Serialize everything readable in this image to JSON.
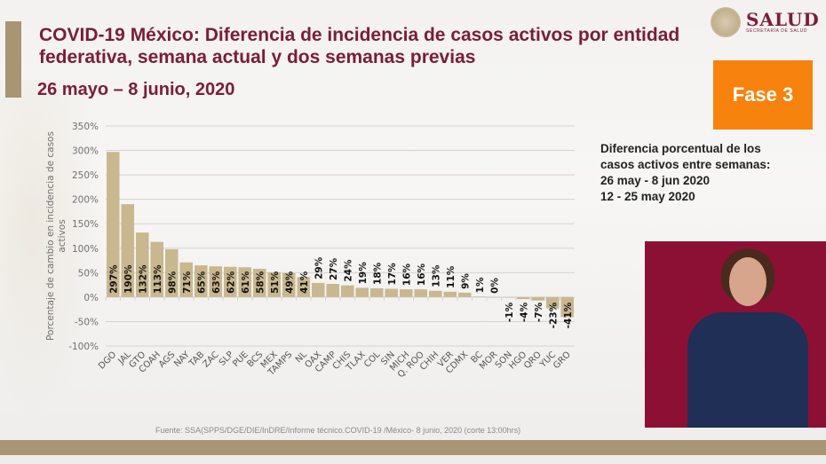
{
  "header": {
    "title": "COVID-19 México: Diferencia de incidencia de casos activos por entidad federativa, semana actual y dos semanas previas",
    "date_range": "26 mayo – 8 junio, 2020",
    "logo_main": "SALUD",
    "logo_sub": "SECRETARÍA DE SALUD",
    "phase_badge": "Fase 3"
  },
  "legend_note": {
    "line1": "Diferencia porcentual de los",
    "line2": "casos activos entre semanas:",
    "line3": "26 may - 8 jun 2020",
    "line4": "12 - 25 may 2020"
  },
  "source": "Fuente: SSA(SPPS/DGE/DIE/InDRE/Informe técnico.COVID-19 /México- 8 junio, 2020 (corte 13:00hrs)",
  "colors": {
    "bar": "#c9b78f",
    "title": "#7b1c3c",
    "phase": "#f7820d",
    "accent_bar": "#a89573"
  },
  "chart_data": {
    "type": "bar",
    "title": "",
    "xlabel": "",
    "ylabel": "Porcentaje de cambio en incidencia de casos activos",
    "ylim": [
      -100,
      350
    ],
    "yticks": [
      -100,
      -50,
      0,
      50,
      100,
      150,
      200,
      250,
      300,
      350
    ],
    "ytick_labels": [
      "-100%",
      "-50%",
      "0%",
      "50%",
      "100%",
      "150%",
      "200%",
      "250%",
      "300%",
      "350%"
    ],
    "grid": true,
    "categories": [
      "DGO",
      "JAL",
      "GTO",
      "COAH",
      "AGS",
      "NAY",
      "TAB",
      "ZAC",
      "SLP",
      "PUE",
      "BCS",
      "MEX",
      "TAMPS",
      "NL",
      "OAX",
      "CAMP",
      "CHIS",
      "TLAX",
      "COL",
      "SIN",
      "MICH",
      "Q. ROO",
      "CHIH",
      "VER",
      "CDMX",
      "BC",
      "MOR",
      "SON",
      "HGO",
      "QRO",
      "YUC",
      "GRO"
    ],
    "values": [
      297,
      190,
      132,
      113,
      98,
      71,
      65,
      63,
      62,
      61,
      58,
      51,
      49,
      41,
      29,
      27,
      24,
      19,
      18,
      17,
      16,
      16,
      13,
      11,
      9,
      1,
      0,
      -1,
      -4,
      -7,
      -23,
      -41
    ],
    "labels": [
      "297%",
      "190%",
      "132%",
      "113%",
      "98%",
      "71%",
      "65%",
      "63%",
      "62%",
      "61%",
      "58%",
      "51%",
      "49%",
      "41%",
      "29%",
      "27%",
      "24%",
      "19%",
      "18%",
      "17%",
      "16%",
      "16%",
      "13%",
      "11%",
      "9%",
      "1%",
      "0%",
      "-1%",
      "-4%",
      "-7%",
      "-23%",
      "-41%"
    ]
  }
}
